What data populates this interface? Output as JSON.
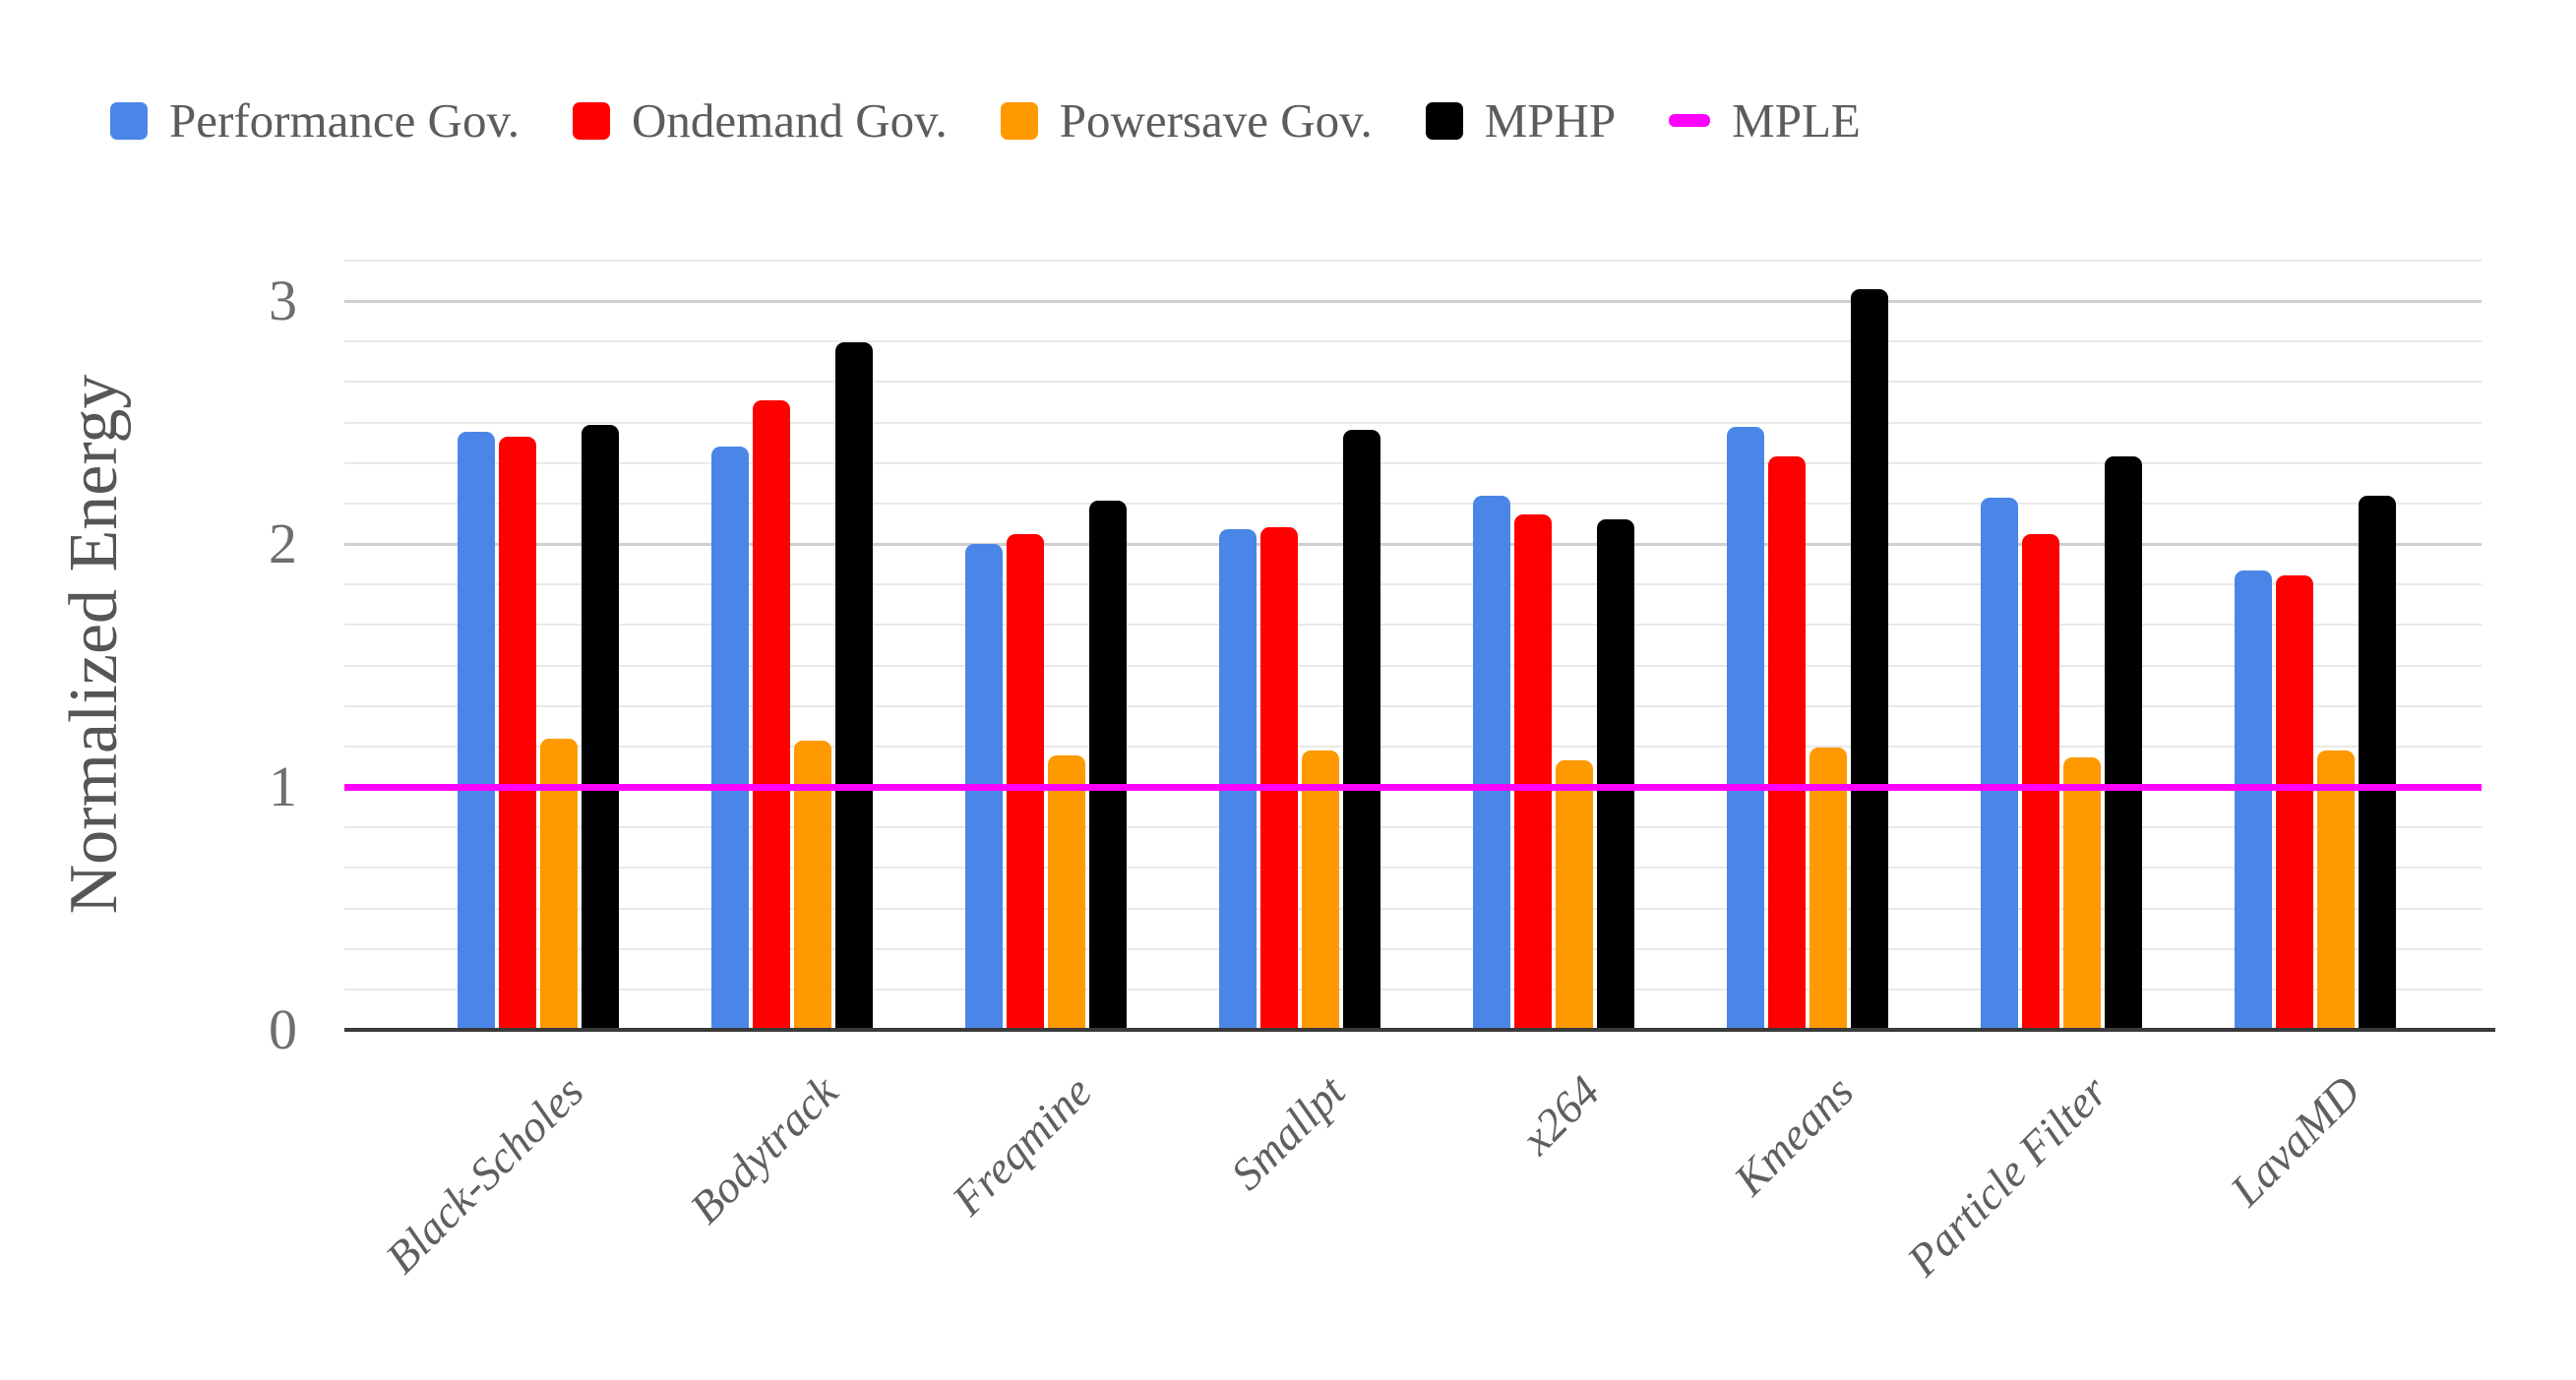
{
  "chart_data": {
    "type": "bar",
    "title": "",
    "ylabel": "Normalized Energy",
    "xlabel": "",
    "categories": [
      "Black-Scholes",
      "Bodytrack",
      "Freqmine",
      "Smallpt",
      "x264",
      "Kmeans",
      "Particle Filter",
      "LavaMD"
    ],
    "series": [
      {
        "name": "Performance Gov.",
        "color": "#4a86e8",
        "values": [
          2.46,
          2.4,
          2.0,
          2.06,
          2.2,
          2.48,
          2.19,
          1.89
        ]
      },
      {
        "name": "Ondemand Gov.",
        "color": "#ff0000",
        "values": [
          2.44,
          2.59,
          2.04,
          2.07,
          2.12,
          2.36,
          2.04,
          1.87
        ]
      },
      {
        "name": "Powersave Gov.",
        "color": "#ff9900",
        "values": [
          1.2,
          1.19,
          1.13,
          1.15,
          1.11,
          1.16,
          1.12,
          1.15
        ]
      },
      {
        "name": "MPHP",
        "color": "#000000",
        "values": [
          2.49,
          2.83,
          2.18,
          2.47,
          2.1,
          3.05,
          2.36,
          2.2
        ]
      }
    ],
    "reference_line": {
      "name": "MPLE",
      "color": "#ff00ff",
      "value": 1.0
    },
    "yticks": [
      0,
      1,
      2,
      3
    ],
    "ylim": [
      0,
      3.1667
    ],
    "minor_grid_step": 0.1667,
    "grid": true,
    "legend_position": "top"
  }
}
